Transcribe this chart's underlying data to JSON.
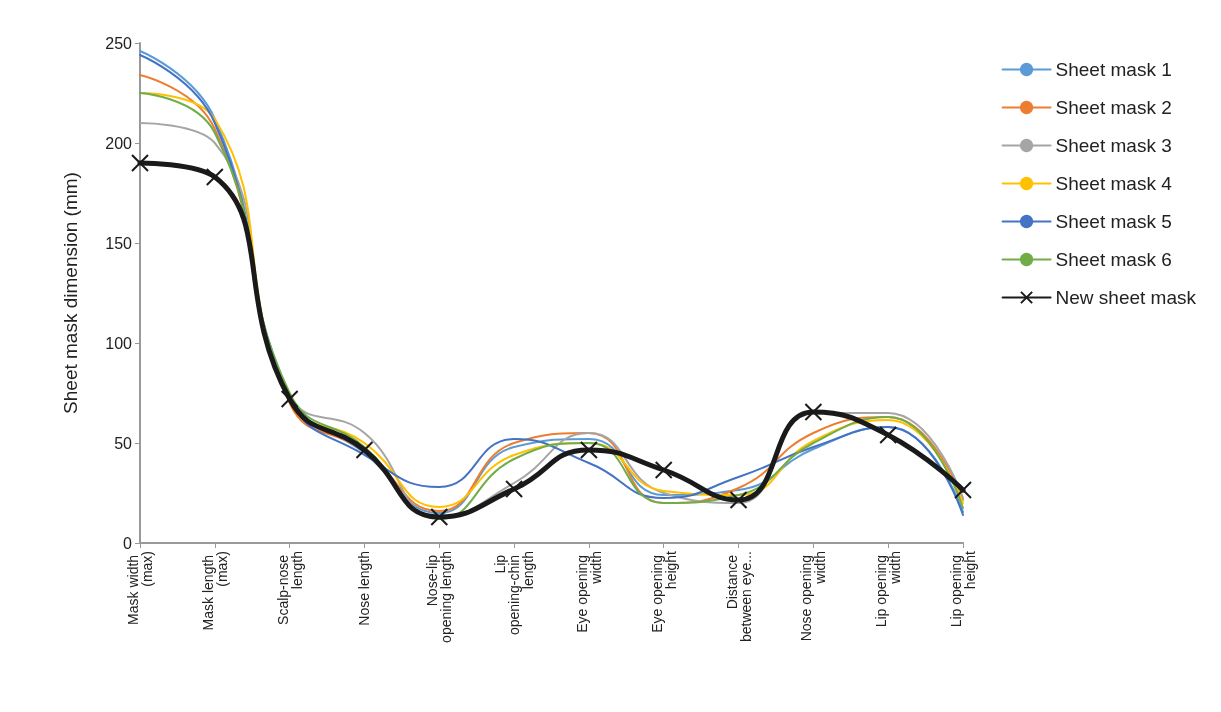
{
  "chart_data": {
    "type": "line",
    "ylabel": "Sheet mask dimension (mm)",
    "categories": [
      "Mask width (max)",
      "Mask length (max)",
      "Scalp-nose length",
      "Nose length",
      "Nose-lip opening length",
      "Lip opening-chin length",
      "Eye opening width",
      "Eye opening height",
      "Distance between eye...",
      "Nose opening width",
      "Lip opening width",
      "Lip opening height"
    ],
    "series": [
      {
        "name": "Sheet mask 1",
        "color": "#5b9bd5",
        "marker": "none",
        "values": [
          246,
          212,
          74,
          45,
          15,
          48,
          52,
          24,
          26.5,
          47,
          58,
          15.5
        ]
      },
      {
        "name": "Sheet mask 2",
        "color": "#ed7d31",
        "marker": "none",
        "values": [
          234,
          207,
          70,
          46,
          16,
          50,
          55,
          20,
          27.5,
          55,
          63,
          21.5
        ]
      },
      {
        "name": "Sheet mask 3",
        "color": "#a5a5a5",
        "marker": "none",
        "values": [
          210,
          200,
          74,
          55,
          13,
          30,
          55,
          25,
          20,
          65,
          65,
          22.5
        ]
      },
      {
        "name": "Sheet mask 4",
        "color": "#ffc000",
        "marker": "none",
        "values": [
          225,
          212,
          72,
          50,
          18,
          44,
          50,
          26,
          24,
          51,
          61.5,
          20
        ]
      },
      {
        "name": "Sheet mask 5",
        "color": "#4472c4",
        "marker": "none",
        "values": [
          244,
          210,
          73,
          44,
          28,
          52,
          40,
          22.5,
          33,
          48,
          58,
          14
        ]
      },
      {
        "name": "Sheet mask 6",
        "color": "#70ad47",
        "marker": "none",
        "values": [
          225,
          205,
          75,
          48,
          12,
          42,
          50,
          20,
          24,
          50,
          63,
          17.5
        ]
      },
      {
        "name": "New sheet mask",
        "color": "#1a1a1a",
        "marker": "cross",
        "values": [
          190,
          183,
          72,
          46.5,
          13,
          27,
          46.5,
          36.5,
          21.5,
          65.5,
          54,
          26.5
        ]
      }
    ],
    "ylim": [
      0,
      250
    ],
    "yticks": [
      0,
      50,
      100,
      150,
      200,
      250
    ],
    "grid": false,
    "legend": "right",
    "line_style": "solid"
  }
}
